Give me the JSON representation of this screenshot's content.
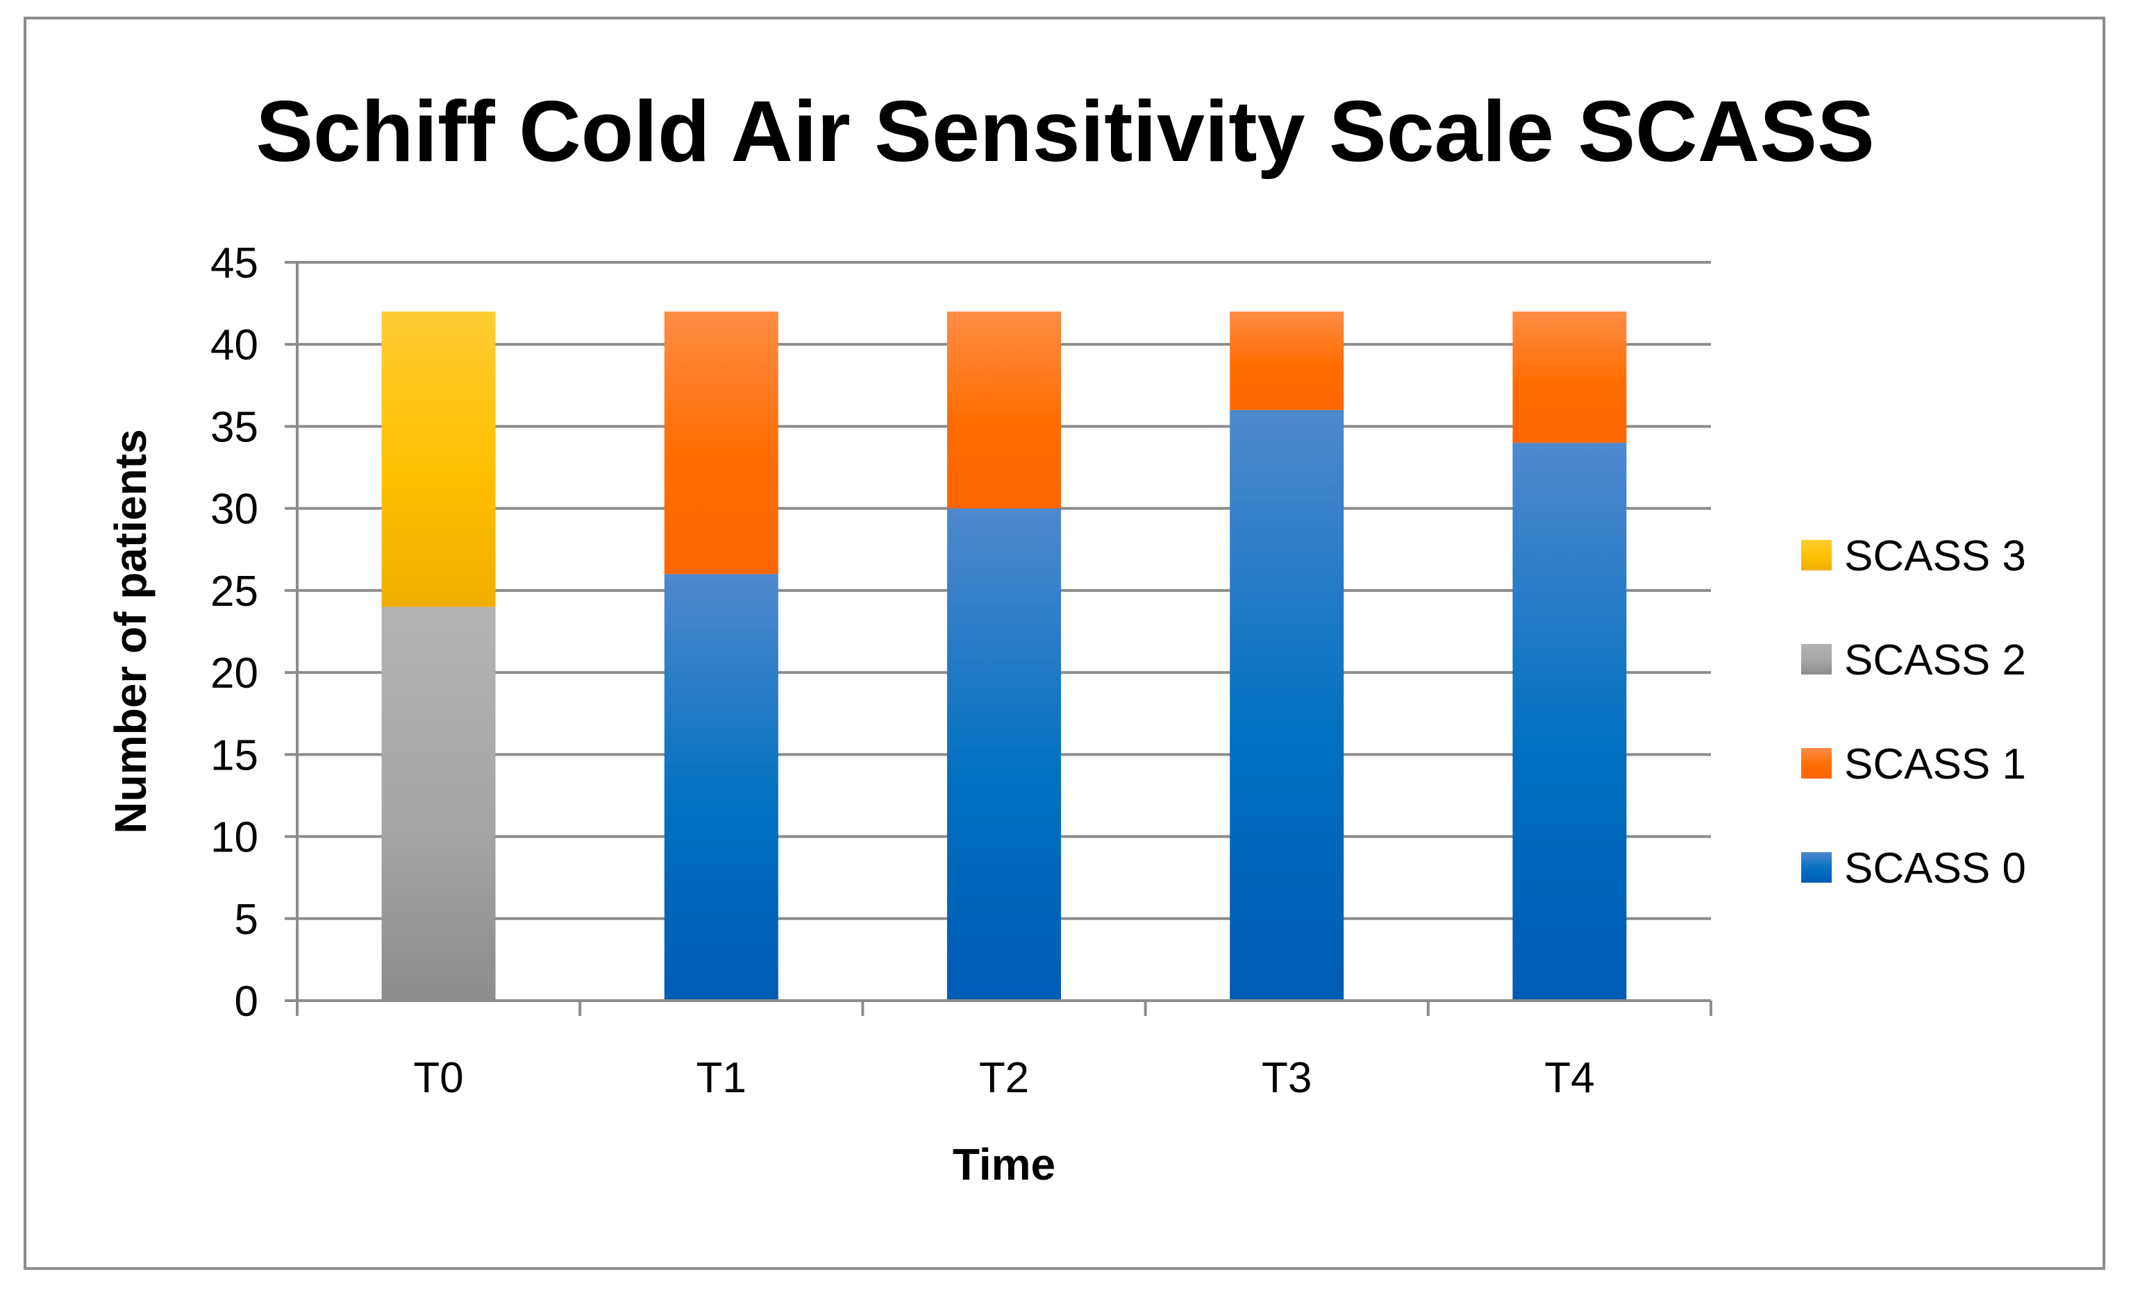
{
  "chart_data": {
    "type": "bar",
    "stacked": true,
    "title": "Schiff Cold Air Sensitivity Scale SCASS",
    "xlabel": "Time",
    "ylabel": "Number of patients",
    "categories": [
      "T0",
      "T1",
      "T2",
      "T3",
      "T4"
    ],
    "ylim": [
      0,
      45
    ],
    "yticks": [
      0,
      5,
      10,
      15,
      20,
      25,
      30,
      35,
      40,
      45
    ],
    "grid": true,
    "legend_position": "right",
    "series": [
      {
        "name": "SCASS 0",
        "values": [
          0,
          26,
          30,
          36,
          34
        ],
        "color": "#0070C0",
        "color_light": "#4F88CE",
        "color_dark": "#005BB5"
      },
      {
        "name": "SCASS 1",
        "values": [
          0,
          16,
          12,
          6,
          8
        ],
        "color": "#FF6D01",
        "color_light": "#FF8C45",
        "color_dark": "#FF6600"
      },
      {
        "name": "SCASS 2",
        "values": [
          24,
          0,
          0,
          0,
          0
        ],
        "color": "#A6A6A6",
        "color_light": "#B3B3B3",
        "color_dark": "#8C8C8C"
      },
      {
        "name": "SCASS 3",
        "values": [
          18,
          0,
          0,
          0,
          0
        ],
        "color": "#FFC000",
        "color_light": "#FFCC33",
        "color_dark": "#F2AE00"
      }
    ],
    "legend_order": [
      "SCASS 3",
      "SCASS 2",
      "SCASS 1",
      "SCASS 0"
    ]
  }
}
